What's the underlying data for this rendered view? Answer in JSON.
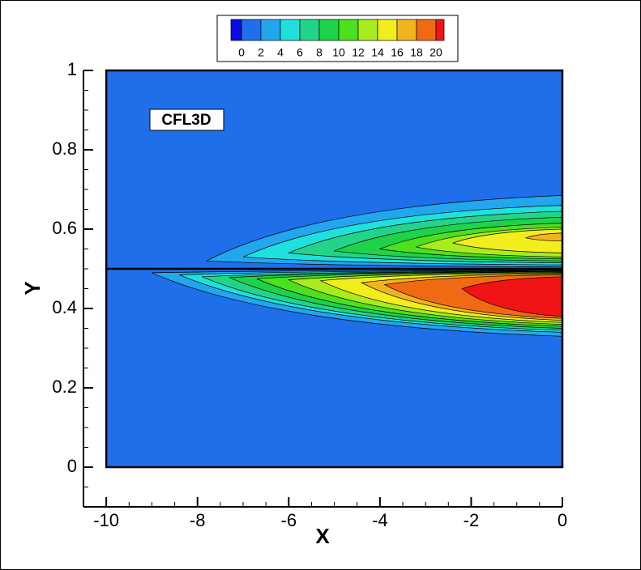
{
  "chart_data": {
    "type": "contour",
    "xlabel": "X",
    "ylabel": "Y",
    "annotation": "CFL3D",
    "xlim": [
      -10.5,
      0
    ],
    "ylim": [
      -0.1,
      1
    ],
    "xticks": [
      -10,
      -8,
      -6,
      -4,
      -2,
      0
    ],
    "yticks": [
      0,
      0.2,
      0.4,
      0.6,
      0.8,
      1
    ],
    "minor_ticks": true,
    "domain": {
      "xlim": [
        -10,
        0
      ],
      "ylim": [
        0,
        1
      ]
    },
    "plate_y": 0.5,
    "colorbar": {
      "ticks": [
        0,
        2,
        4,
        6,
        8,
        10,
        12,
        14,
        16,
        18,
        20
      ],
      "colors": [
        "#0a0ae6",
        "#1f6feb",
        "#22a6ee",
        "#1fe0dc",
        "#22d48a",
        "#1ed24a",
        "#4ce01e",
        "#a8ec1e",
        "#f2ee1e",
        "#f2b41e",
        "#f06a14",
        "#f01414"
      ]
    },
    "contours": [
      {
        "level": 2,
        "start": [
          -7.8,
          0.52
        ],
        "end_top": 0.685,
        "end_bottom": 0.505
      },
      {
        "level": 4,
        "start": [
          -7.0,
          0.53
        ],
        "end_top": 0.66,
        "end_bottom": 0.51
      },
      {
        "level": 6,
        "start": [
          -6.0,
          0.54
        ],
        "end_top": 0.645,
        "end_bottom": 0.515
      },
      {
        "level": 8,
        "start": [
          -5.0,
          0.545
        ],
        "end_top": 0.63,
        "end_bottom": 0.52
      },
      {
        "level": 10,
        "start": [
          -4.0,
          0.55
        ],
        "end_top": 0.615,
        "end_bottom": 0.525
      },
      {
        "level": 12,
        "start": [
          -3.2,
          0.555
        ],
        "end_top": 0.605,
        "end_bottom": 0.53
      },
      {
        "level": 14,
        "start": [
          -2.4,
          0.565
        ],
        "end_top": 0.6,
        "end_bottom": 0.54
      },
      {
        "level": 16,
        "start": [
          -0.8,
          0.578
        ],
        "end_top": 0.59,
        "end_bottom": 0.57
      },
      {
        "level": 2,
        "start": [
          -9.0,
          0.49
        ],
        "end_top": 0.497,
        "end_bottom": 0.33
      },
      {
        "level": 4,
        "start": [
          -8.4,
          0.485
        ],
        "end_top": 0.496,
        "end_bottom": 0.34
      },
      {
        "level": 6,
        "start": [
          -7.9,
          0.48
        ],
        "end_top": 0.495,
        "end_bottom": 0.345
      },
      {
        "level": 8,
        "start": [
          -7.3,
          0.478
        ],
        "end_top": 0.494,
        "end_bottom": 0.35
      },
      {
        "level": 10,
        "start": [
          -6.7,
          0.475
        ],
        "end_top": 0.493,
        "end_bottom": 0.355
      },
      {
        "level": 12,
        "start": [
          -6.0,
          0.472
        ],
        "end_top": 0.492,
        "end_bottom": 0.36
      },
      {
        "level": 14,
        "start": [
          -5.3,
          0.47
        ],
        "end_top": 0.49,
        "end_bottom": 0.365
      },
      {
        "level": 16,
        "start": [
          -4.4,
          0.465
        ],
        "end_top": 0.488,
        "end_bottom": 0.37
      },
      {
        "level": 18,
        "start": [
          -3.9,
          0.46
        ],
        "end_top": 0.485,
        "end_bottom": 0.375
      },
      {
        "level": 20,
        "start": [
          -2.2,
          0.45
        ],
        "end_top": 0.48,
        "end_bottom": 0.38
      }
    ]
  }
}
